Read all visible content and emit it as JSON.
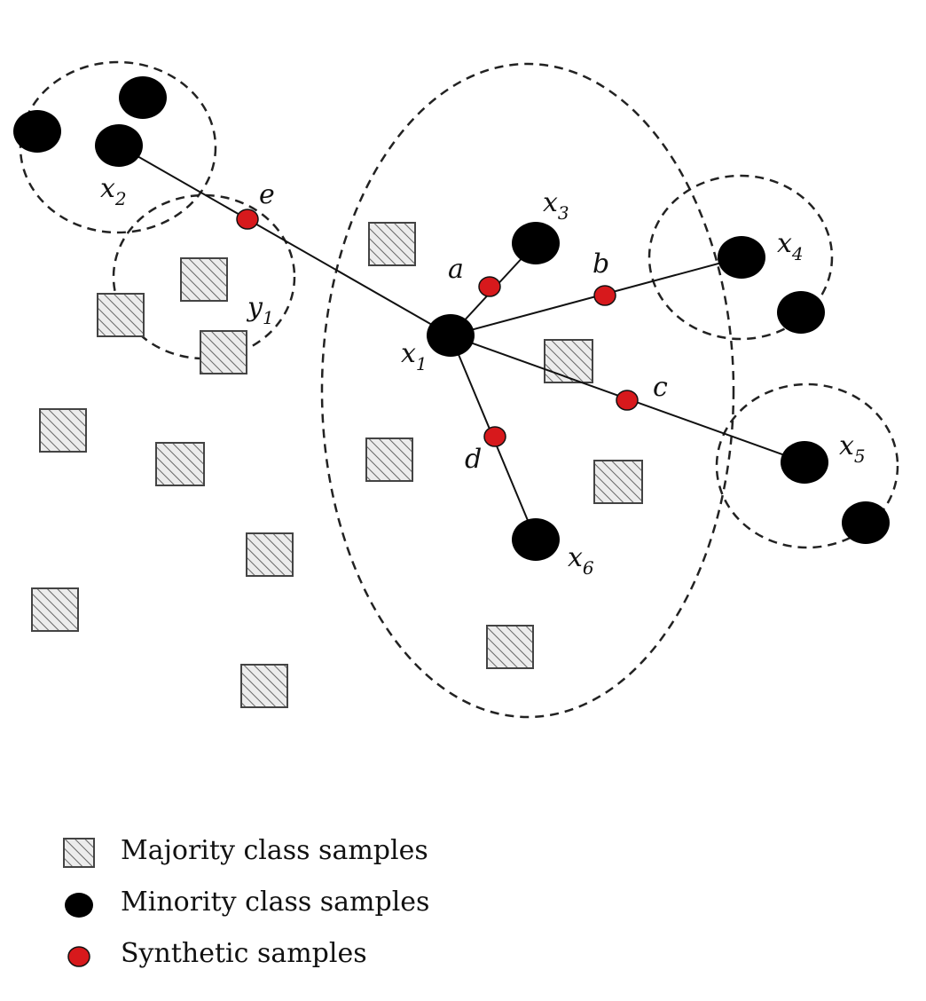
{
  "legend": {
    "majority": "Majority class samples",
    "minority": "Minority class samples",
    "synthetic": "Synthetic samples"
  },
  "labels": {
    "x1": {
      "base": "x",
      "sub": "1"
    },
    "x2": {
      "base": "x",
      "sub": "2"
    },
    "x3": {
      "base": "x",
      "sub": "3"
    },
    "x4": {
      "base": "x",
      "sub": "4"
    },
    "x5": {
      "base": "x",
      "sub": "5"
    },
    "x6": {
      "base": "x",
      "sub": "6"
    },
    "y1": {
      "base": "y",
      "sub": "1"
    },
    "a": "a",
    "b": "b",
    "c": "c",
    "d": "d",
    "e": "e"
  },
  "colors": {
    "minority": "#000000",
    "synthetic": "#d7191c",
    "majority_fill": "#e6e6e6",
    "majority_stroke": "#555555",
    "line": "#111111"
  }
}
